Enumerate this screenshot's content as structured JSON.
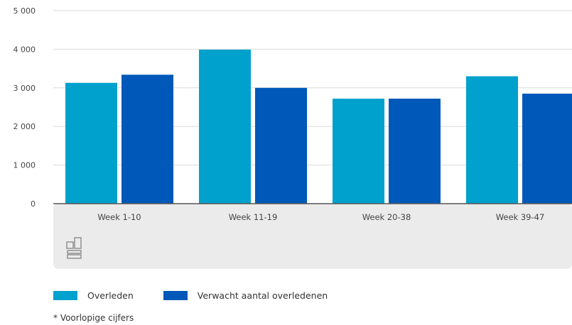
{
  "chart_data": {
    "type": "bar",
    "categories": [
      "Week 1-10",
      "Week 11-19",
      "Week 20-38",
      "Week 39-47"
    ],
    "series": [
      {
        "name": "Overleden",
        "color": "#00a1cd",
        "values": [
          3130,
          3990,
          2720,
          3300
        ]
      },
      {
        "name": "Verwacht aantal overledenen",
        "color": "#0058b8",
        "values": [
          3340,
          3000,
          2720,
          2850
        ]
      }
    ],
    "ylim": [
      0,
      5000
    ],
    "yticks": [
      {
        "value": 0,
        "label": "0"
      },
      {
        "value": 1000,
        "label": "1 000"
      },
      {
        "value": 2000,
        "label": "2 000"
      },
      {
        "value": 3000,
        "label": "3 000"
      },
      {
        "value": 4000,
        "label": "4 000"
      },
      {
        "value": 5000,
        "label": "5 000"
      }
    ],
    "grid": true,
    "legend_position": "bottom-left"
  },
  "logo": {
    "name": "cbs-logo-icon"
  },
  "footnote": "* Voorlopige cijfers"
}
